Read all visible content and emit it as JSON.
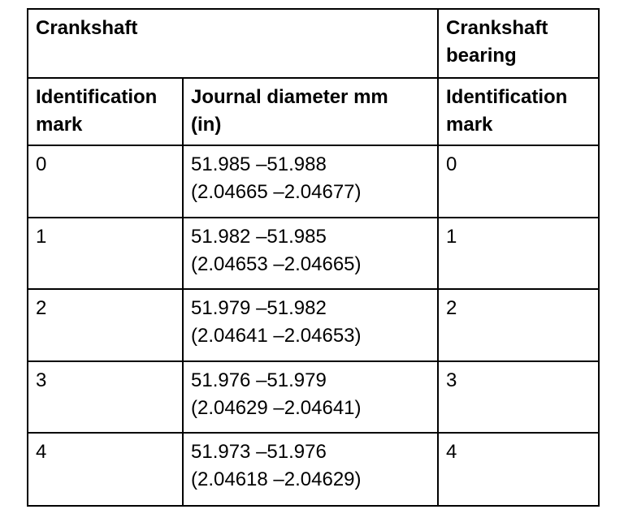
{
  "table": {
    "header": [
      {
        "lines": [
          "Crankshaft"
        ],
        "colspan": 2
      },
      {
        "lines": [
          "Crankshaft",
          "bearing"
        ],
        "colspan": 1
      }
    ],
    "subheader": [
      [
        "Identification",
        "mark"
      ],
      [
        "Journal diameter mm",
        "(in)"
      ],
      [
        "Identification",
        "mark"
      ]
    ],
    "rows": [
      [
        [
          "0"
        ],
        [
          "51.985 –51.988",
          "(2.04665 –2.04677)"
        ],
        [
          "0"
        ]
      ],
      [
        [
          "1"
        ],
        [
          "51.982 –51.985",
          "(2.04653 –2.04665)"
        ],
        [
          "1"
        ]
      ],
      [
        [
          "2"
        ],
        [
          "51.979 –51.982",
          "(2.04641 –2.04653)"
        ],
        [
          "2"
        ]
      ],
      [
        [
          "3"
        ],
        [
          "51.976 –51.979",
          "(2.04629 –2.04641)"
        ],
        [
          "3"
        ]
      ],
      [
        [
          "4"
        ],
        [
          "51.973 –51.976",
          "(2.04618 –2.04629)"
        ],
        [
          "4"
        ]
      ]
    ]
  }
}
